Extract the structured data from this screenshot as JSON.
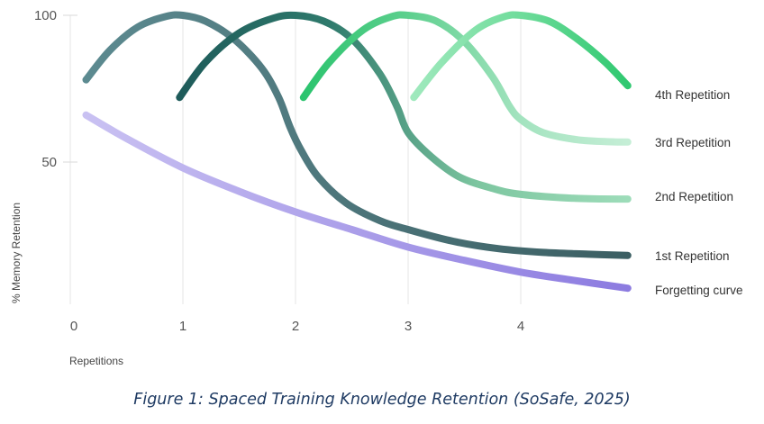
{
  "chart_data": {
    "type": "line",
    "xlabel": "Repetitions",
    "ylabel": "% Memory Retention",
    "caption": "Figure 1: Spaced Training Knowledge Retention (SoSafe, 2025)",
    "xlim": [
      0,
      5
    ],
    "ylim": [
      0,
      100
    ],
    "x_ticks": [
      {
        "value": 0,
        "label": "0"
      },
      {
        "value": 1,
        "label": "1"
      },
      {
        "value": 2,
        "label": "2"
      },
      {
        "value": 3,
        "label": "3"
      },
      {
        "value": 4,
        "label": "4"
      }
    ],
    "y_ticks": [
      {
        "value": 50,
        "label": "50"
      },
      {
        "value": 100,
        "label": "100"
      }
    ],
    "grid": {
      "vertical": true,
      "horizontal": false
    },
    "legend_placement": "right",
    "series": [
      {
        "name": "Forgetting curve",
        "color": "#9d8ee6",
        "gradient": [
          "#c9c1f2",
          "#8c7be0"
        ],
        "x": [
          0.14,
          0.5,
          1.0,
          1.5,
          2.0,
          2.5,
          3.0,
          3.5,
          4.0,
          4.5,
          4.95
        ],
        "y": [
          66,
          58,
          48,
          40,
          33,
          27,
          21,
          16.5,
          12.5,
          9.5,
          7
        ]
      },
      {
        "name": "1st Repetition",
        "color": "#3d6b6e",
        "gradient": [
          "#5c8a90",
          "#3c5f63"
        ],
        "x": [
          0.14,
          0.35,
          0.6,
          0.85,
          1.0,
          1.2,
          1.45,
          1.7,
          1.85,
          1.95,
          2.05,
          2.2,
          2.45,
          2.75,
          3.0,
          3.4,
          3.8,
          4.2,
          4.6,
          4.95
        ],
        "y": [
          78,
          88,
          96,
          99.6,
          100,
          98,
          92,
          82,
          72,
          62,
          54,
          45,
          36,
          30,
          27,
          23,
          20.5,
          19.2,
          18.6,
          18.2
        ]
      },
      {
        "name": "2nd Repetition",
        "color": "#5aa88a",
        "gradient": [
          "#1e5b5a",
          "#2f7a6c",
          "#7dc6a0",
          "#9ddcb9"
        ],
        "x": [
          0.97,
          1.2,
          1.5,
          1.8,
          2.0,
          2.25,
          2.5,
          2.75,
          2.9,
          3.0,
          3.2,
          3.45,
          3.75,
          4.0,
          4.5,
          4.95
        ],
        "y": [
          72,
          84,
          94,
          99,
          100,
          98,
          92,
          80,
          69,
          60,
          52,
          45,
          41,
          39,
          37.6,
          37.4
        ]
      },
      {
        "name": "3rd Repetition",
        "color": "#6fd39a",
        "gradient": [
          "#2bc46e",
          "#5fd08f",
          "#a3e3bf",
          "#c5eed6"
        ],
        "x": [
          2.07,
          2.3,
          2.6,
          2.85,
          3.0,
          3.25,
          3.5,
          3.75,
          3.9,
          4.0,
          4.2,
          4.5,
          4.8,
          4.95
        ],
        "y": [
          72,
          84,
          95,
          99.5,
          100,
          98,
          91,
          79,
          69,
          64.5,
          60,
          57.6,
          56.9,
          56.8
        ]
      },
      {
        "name": "4th Repetition",
        "color": "#7ee0a5",
        "gradient": [
          "#9fe9bd",
          "#6fdc9b",
          "#2fc870"
        ],
        "x": [
          3.05,
          3.3,
          3.6,
          3.85,
          4.0,
          4.25,
          4.5,
          4.75,
          4.95
        ],
        "y": [
          72,
          84,
          95,
          99.5,
          100,
          98,
          92,
          84,
          76
        ]
      }
    ]
  }
}
